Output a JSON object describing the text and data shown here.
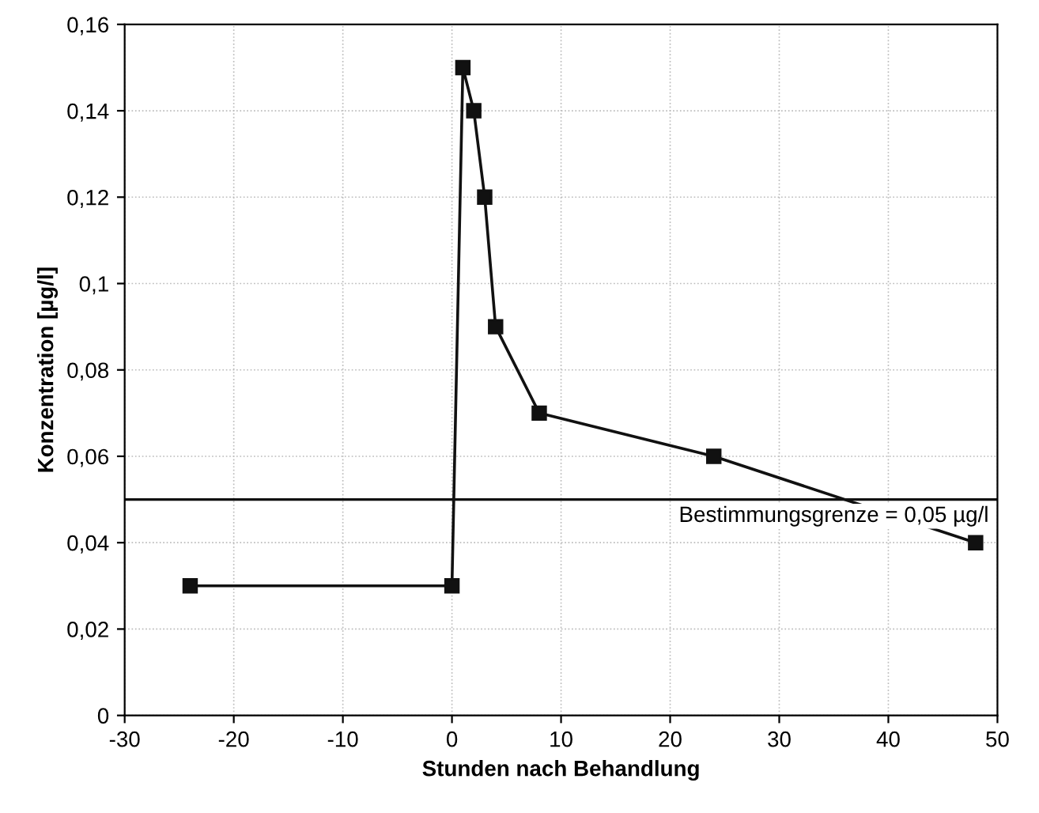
{
  "chart_data": {
    "type": "line",
    "xlabel": "Stunden nach Behandlung",
    "ylabel": "Konzentration [µg/l]",
    "x": [
      -24,
      0,
      1,
      2,
      3,
      4,
      8,
      24,
      48
    ],
    "series": [
      {
        "color": "#111111",
        "values": [
          0.03,
          0.03,
          0.15,
          0.14,
          0.12,
          0.09,
          0.07,
          0.06,
          0.04
        ]
      }
    ],
    "xlim": [
      -30,
      50
    ],
    "xticks": [
      -30,
      -20,
      -10,
      0,
      10,
      20,
      30,
      40,
      50
    ],
    "ylim": [
      0,
      0.16
    ],
    "yticks": [
      {
        "value": 0,
        "label": "0"
      },
      {
        "value": 0.02,
        "label": "0,02"
      },
      {
        "value": 0.04,
        "label": "0,04"
      },
      {
        "value": 0.06,
        "label": "0,06"
      },
      {
        "value": 0.08,
        "label": "0,08"
      },
      {
        "value": 0.1,
        "label": "0,1"
      },
      {
        "value": 0.12,
        "label": "0,12"
      },
      {
        "value": 0.14,
        "label": "0,14"
      },
      {
        "value": 0.16,
        "label": "0,16"
      }
    ],
    "ref_lines": [
      {
        "axis": "y",
        "value": 0.05,
        "label": "Bestimmungsgrenze = 0,05 µg/l",
        "color": "#111111"
      }
    ],
    "grid": true,
    "marker": "square",
    "line_style": "solid",
    "legend": false
  }
}
